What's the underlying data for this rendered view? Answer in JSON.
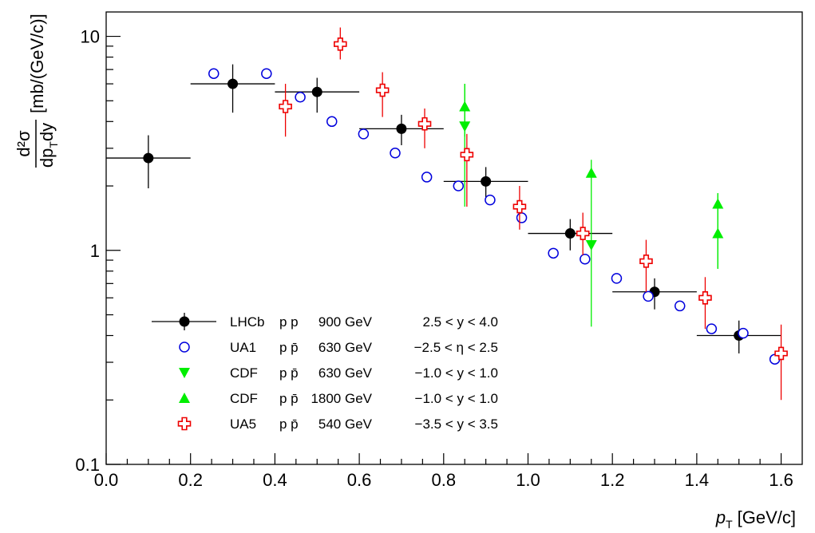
{
  "chart_data": {
    "type": "scatter",
    "xlim": [
      0.0,
      1.65
    ],
    "ylim": [
      0.1,
      13
    ],
    "y_scale": "log",
    "grid": false,
    "legend_position": "bottom-left",
    "x_tick_labels": [
      "0.0",
      "0.2",
      "0.4",
      "0.6",
      "0.8",
      "1.0",
      "1.2",
      "1.4",
      "1.6"
    ],
    "y_tick_labels": [
      "0.1",
      "1",
      "10"
    ],
    "xlabel": {
      "main": "p",
      "sub": "T",
      "unit": "[GeV/c]"
    },
    "ylabel": {
      "numerator": "d²σ",
      "denominator_p": "dp",
      "denominator_sub": "T",
      "denominator_rest": "dy",
      "unit": "[mb/(GeV/c)]"
    },
    "series": [
      {
        "name": "LHCb",
        "color": "#000000",
        "marker": "filled-circle",
        "legend": {
          "beam": "p p",
          "energy": "900 GeV",
          "range": "2.5 < y < 4.0"
        },
        "points": [
          {
            "x": 0.1,
            "y": 2.7,
            "x_lo": 0.0,
            "x_hi": 0.2,
            "y_lo": 1.95,
            "y_hi": 3.45
          },
          {
            "x": 0.3,
            "y": 6.0,
            "x_lo": 0.2,
            "x_hi": 0.4,
            "y_lo": 4.4,
            "y_hi": 7.4
          },
          {
            "x": 0.5,
            "y": 5.5,
            "x_lo": 0.4,
            "x_hi": 0.6,
            "y_lo": 4.4,
            "y_hi": 6.4
          },
          {
            "x": 0.7,
            "y": 3.7,
            "x_lo": 0.6,
            "x_hi": 0.8,
            "y_lo": 3.1,
            "y_hi": 4.3
          },
          {
            "x": 0.9,
            "y": 2.1,
            "x_lo": 0.8,
            "x_hi": 1.0,
            "y_lo": 1.75,
            "y_hi": 2.45
          },
          {
            "x": 1.1,
            "y": 1.2,
            "x_lo": 1.0,
            "x_hi": 1.2,
            "y_lo": 1.0,
            "y_hi": 1.4
          },
          {
            "x": 1.3,
            "y": 0.64,
            "x_lo": 1.2,
            "x_hi": 1.4,
            "y_lo": 0.53,
            "y_hi": 0.74
          },
          {
            "x": 1.5,
            "y": 0.4,
            "x_lo": 1.4,
            "x_hi": 1.6,
            "y_lo": 0.33,
            "y_hi": 0.47
          }
        ]
      },
      {
        "name": "UA1",
        "color": "#0000dd",
        "marker": "open-circle",
        "legend": {
          "beam": "p p̄",
          "energy": "630 GeV",
          "range": "−2.5 < η < 2.5"
        },
        "points": [
          {
            "x": 0.255,
            "y": 6.7
          },
          {
            "x": 0.38,
            "y": 6.7
          },
          {
            "x": 0.46,
            "y": 5.2
          },
          {
            "x": 0.535,
            "y": 4.0
          },
          {
            "x": 0.61,
            "y": 3.5
          },
          {
            "x": 0.685,
            "y": 2.85
          },
          {
            "x": 0.76,
            "y": 2.2
          },
          {
            "x": 0.835,
            "y": 2.0
          },
          {
            "x": 0.91,
            "y": 1.72
          },
          {
            "x": 0.985,
            "y": 1.42
          },
          {
            "x": 1.06,
            "y": 0.97
          },
          {
            "x": 1.135,
            "y": 0.91
          },
          {
            "x": 1.21,
            "y": 0.74
          },
          {
            "x": 1.285,
            "y": 0.61
          },
          {
            "x": 1.36,
            "y": 0.55
          },
          {
            "x": 1.435,
            "y": 0.43
          },
          {
            "x": 1.51,
            "y": 0.41
          },
          {
            "x": 1.585,
            "y": 0.31
          }
        ]
      },
      {
        "name": "CDF",
        "color": "#00ee00",
        "marker": "triangle-down",
        "legend": {
          "beam": "p p̄",
          "energy": "630 GeV",
          "range": "−1.0 < y < 1.0"
        },
        "points": [
          {
            "x": 0.85,
            "y": 3.8,
            "y_lo": 1.6,
            "y_hi": 6.0
          },
          {
            "x": 1.15,
            "y": 1.06,
            "y_lo": 0.44,
            "y_hi": 1.7
          }
        ]
      },
      {
        "name": "CDF",
        "color": "#00ee00",
        "marker": "triangle-up",
        "legend": {
          "beam": "p p̄",
          "energy": "1800 GeV",
          "range": "−1.0 < y < 1.0"
        },
        "points": [
          {
            "x": 0.85,
            "y": 4.7,
            "y_lo": 3.4,
            "y_hi": 6.0
          },
          {
            "x": 1.15,
            "y": 2.3,
            "y_lo": 1.7,
            "y_hi": 2.65
          },
          {
            "x": 1.45,
            "y": 1.65,
            "y_lo": 0.82,
            "y_hi": 1.85
          },
          {
            "x": 1.45,
            "y": 1.2,
            "y_lo": 0.82,
            "y_hi": 1.85
          }
        ]
      },
      {
        "name": "UA5",
        "color": "#ee0000",
        "marker": "open-cross",
        "legend": {
          "beam": "p p̄",
          "energy": "540 GeV",
          "range": "−3.5 < y < 3.5"
        },
        "points": [
          {
            "x": 0.425,
            "y": 4.7,
            "y_lo": 3.4,
            "y_hi": 6.0
          },
          {
            "x": 0.555,
            "y": 9.2,
            "y_lo": 7.8,
            "y_hi": 11.0
          },
          {
            "x": 0.655,
            "y": 5.6,
            "y_lo": 4.2,
            "y_hi": 6.8
          },
          {
            "x": 0.755,
            "y": 3.9,
            "y_lo": 3.0,
            "y_hi": 4.6
          },
          {
            "x": 0.855,
            "y": 2.8,
            "y_lo": 1.6,
            "y_hi": 3.5
          },
          {
            "x": 0.98,
            "y": 1.6,
            "y_lo": 1.25,
            "y_hi": 2.0
          },
          {
            "x": 1.13,
            "y": 1.2,
            "y_lo": 0.95,
            "y_hi": 1.5
          },
          {
            "x": 1.28,
            "y": 0.89,
            "y_lo": 0.64,
            "y_hi": 1.12
          },
          {
            "x": 1.42,
            "y": 0.6,
            "y_lo": 0.43,
            "y_hi": 0.75
          },
          {
            "x": 1.6,
            "y": 0.33,
            "y_lo": 0.2,
            "y_hi": 0.45
          }
        ]
      }
    ]
  }
}
